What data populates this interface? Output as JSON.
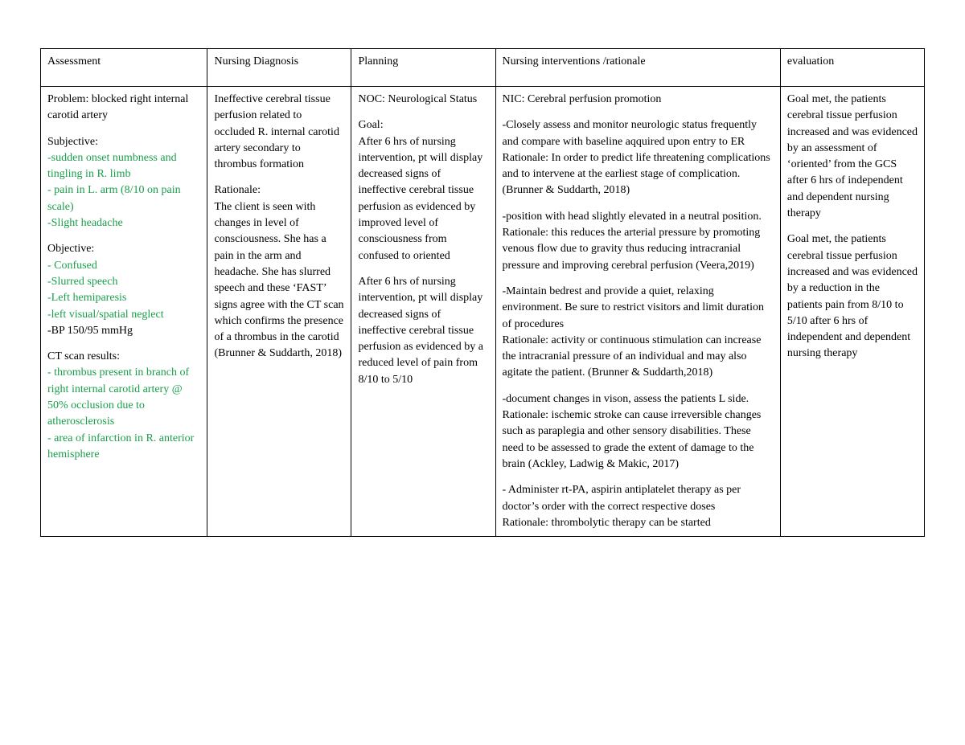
{
  "colors": {
    "text_default": "#000000",
    "text_green": "#1a9e4b",
    "border": "#000000",
    "background": "#ffffff"
  },
  "typography": {
    "font_family": "Georgia, Times New Roman, serif",
    "font_size_pt": 11,
    "line_height": 1.45
  },
  "table": {
    "column_widths_pct": [
      16.8,
      14.5,
      14.5,
      28.7,
      14.5
    ],
    "headers": [
      "Assessment",
      "Nursing Diagnosis",
      "Planning",
      "Nursing interventions /rationale",
      "evaluation"
    ],
    "assessment": {
      "problem_label": "Problem: blocked right internal carotid artery",
      "subjective_label": "Subjective:",
      "subjective_items": [
        "-sudden onset numbness and tingling in R. limb",
        "- pain in L. arm (8/10 on pain scale)",
        "-Slight headache"
      ],
      "objective_label": "Objective:",
      "objective_items_green": [
        "- Confused",
        "-Slurred speech",
        "-Left hemiparesis",
        "-left visual/spatial neglect"
      ],
      "objective_bp": "-BP 150/95 mmHg",
      "ct_label": "CT scan results:",
      "ct_items_green": [
        "- thrombus present in branch of right internal carotid artery @ 50% occlusion due to atherosclerosis",
        "- area of infarction in R. anterior hemisphere"
      ]
    },
    "diagnosis": {
      "p1": "Ineffective cerebral tissue perfusion related to occluded R. internal carotid artery secondary to thrombus formation",
      "rationale_label": "Rationale:",
      "rationale_text": "The client is seen with changes in level of consciousness. She has a pain in the arm and headache. She has slurred speech and these ‘FAST’ signs agree with the CT scan which confirms the presence of a thrombus in the carotid (Brunner & Suddarth, 2018)"
    },
    "planning": {
      "noc": "NOC: Neurological Status",
      "goal_label": "Goal:",
      "goal1": "After 6 hrs of nursing intervention, pt will display decreased signs of ineffective cerebral tissue perfusion as evidenced by improved level of consciousness from confused to oriented",
      "goal2": "After 6 hrs of nursing intervention, pt will display decreased signs of ineffective cerebral tissue perfusion as evidenced by a reduced level of pain from 8/10 to 5/10"
    },
    "interventions": {
      "nic": "NIC: Cerebral perfusion promotion",
      "i1": "-Closely assess and monitor neurologic status frequently and compare with baseline aqquired upon entry to ER",
      "r1": "Rationale: In order to predict life threatening complications and to intervene at the earliest stage of complication. (Brunner & Suddarth, 2018)",
      "i2": "-position with head slightly elevated in a neutral position.",
      "r2": "Rationale: this reduces the arterial pressure by promoting venous flow due to gravity thus reducing intracranial pressure and improving cerebral perfusion (Veera,2019)",
      "i3": "-Maintain bedrest and provide a quiet, relaxing environment. Be sure to restrict visitors and limit duration of procedures",
      "r3": "Rationale: activity or continuous stimulation can increase the intracranial pressure of an individual and may also agitate the patient. (Brunner & Suddarth,2018)",
      "i4": "-document changes in vison, assess the patients L side.",
      "r4": "Rationale: ischemic stroke can cause irreversible changes such as paraplegia and other sensory disabilities. These need to be assessed to grade the extent of damage to the brain (Ackley, Ladwig & Makic, 2017)",
      "i5": "- Administer rt-PA, aspirin antiplatelet therapy as per doctor’s order with the correct respective doses",
      "r5": "Rationale: thrombolytic therapy can be started"
    },
    "evaluation": {
      "p1": "Goal met, the patients cerebral tissue perfusion increased and was evidenced by an assessment of ‘oriented’ from the GCS after 6 hrs of independent and dependent nursing therapy",
      "p2": "Goal met, the patients cerebral tissue perfusion increased and was evidenced by a reduction in the patients pain from 8/10 to 5/10 after 6 hrs of independent and dependent nursing therapy"
    }
  }
}
